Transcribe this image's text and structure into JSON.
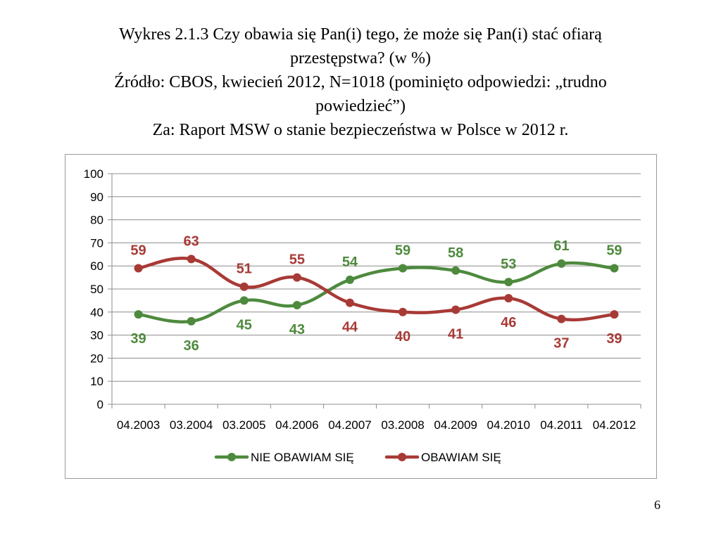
{
  "slide": {
    "title_lines": [
      "Wykres 2.1.3 Czy obawia się Pan(i) tego, że może się Pan(i) stać ofiarą",
      "przestępstwa? (w %)",
      "Źródło: CBOS, kwiecień 2012, N=1018 (pominięto odpowiedzi: „trudno",
      "powiedzieć”)",
      "Za: Raport MSW o stanie bezpieczeństwa w Polsce w 2012 r."
    ],
    "page_number": "6"
  },
  "chart_data": {
    "type": "line",
    "categories": [
      "04.2003",
      "03.2004",
      "03.2005",
      "04.2006",
      "04.2007",
      "03.2008",
      "04.2009",
      "04.2010",
      "04.2011",
      "04.2012"
    ],
    "series": [
      {
        "name": "NIE OBAWIAM SIĘ",
        "color": "#4e8a3e",
        "values": [
          39,
          36,
          45,
          43,
          54,
          59,
          58,
          53,
          61,
          59
        ]
      },
      {
        "name": "OBAWIAM SIĘ",
        "color": "#a83a36",
        "values": [
          59,
          63,
          51,
          55,
          44,
          40,
          41,
          46,
          37,
          39
        ]
      }
    ],
    "ylim": [
      0,
      100
    ],
    "yticks": [
      0,
      10,
      20,
      30,
      40,
      50,
      60,
      70,
      80,
      90,
      100
    ],
    "grid": true,
    "legend_position": "bottom"
  }
}
